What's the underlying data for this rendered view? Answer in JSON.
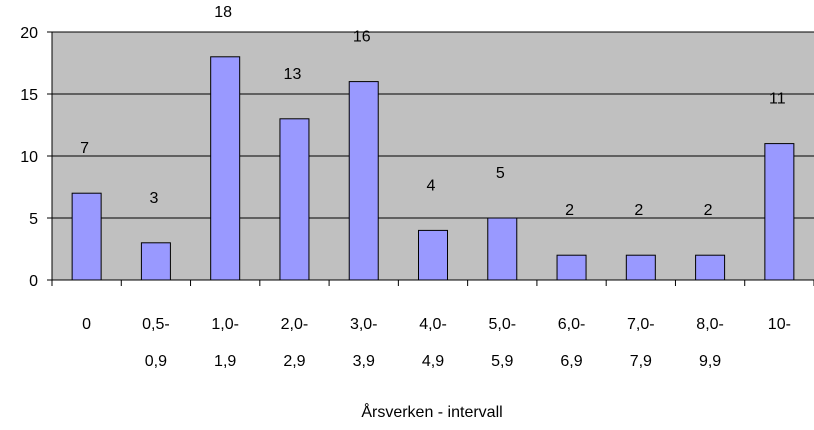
{
  "chart_data": {
    "type": "bar",
    "categories": [
      [
        "0",
        ""
      ],
      [
        "0,5-",
        "0,9"
      ],
      [
        "1,0-",
        "1,9"
      ],
      [
        "2,0-",
        "2,9"
      ],
      [
        "3,0-",
        "3,9"
      ],
      [
        "4,0-",
        "4,9"
      ],
      [
        "5,0-",
        "5,9"
      ],
      [
        "6,0-",
        "6,9"
      ],
      [
        "7,0-",
        "7,9"
      ],
      [
        "8,0-",
        "9,9"
      ],
      [
        "10-",
        ""
      ]
    ],
    "values": [
      7,
      3,
      18,
      13,
      16,
      4,
      5,
      2,
      2,
      2,
      11
    ],
    "data_labels": [
      "7",
      "3",
      "18",
      "13",
      "16",
      "4",
      "5",
      "2",
      "2",
      "2",
      "11"
    ],
    "xlabel": "Årsverken - intervall",
    "ylabel": "",
    "ylim": [
      0,
      20
    ],
    "yticks": [
      0,
      5,
      10,
      15,
      20
    ],
    "grid": true,
    "colors": {
      "bar_fill": "#9999ff",
      "bar_stroke": "#000000",
      "plot_bg": "#c0c0c0",
      "grid": "#000000"
    }
  }
}
